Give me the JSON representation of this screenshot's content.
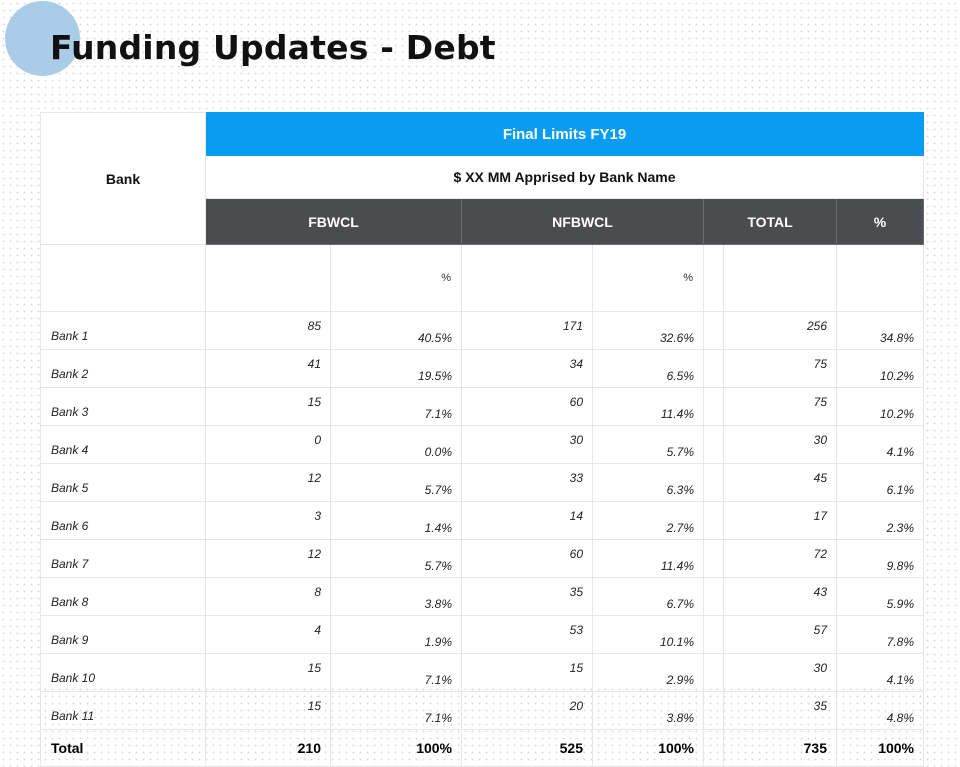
{
  "title": "Funding Updates - Debt",
  "table": {
    "bank_header": "Bank",
    "group_header": "Final Limits FY19",
    "sub_header": "$ XX MM Apprised by Bank Name",
    "columns": {
      "fbwcl": "FBWCL",
      "nfbwcl": "NFBWCL",
      "total": "TOTAL",
      "pct": "%"
    },
    "pct_label": "%",
    "rows": [
      {
        "bank": "Bank 1",
        "fbwcl": "85",
        "fbwcl_pct": "40.5%",
        "nfbwcl": "171",
        "nfbwcl_pct": "32.6%",
        "total": "256",
        "total_pct": "34.8%"
      },
      {
        "bank": "Bank 2",
        "fbwcl": "41",
        "fbwcl_pct": "19.5%",
        "nfbwcl": "34",
        "nfbwcl_pct": "6.5%",
        "total": "75",
        "total_pct": "10.2%"
      },
      {
        "bank": "Bank 3",
        "fbwcl": "15",
        "fbwcl_pct": "7.1%",
        "nfbwcl": "60",
        "nfbwcl_pct": "11.4%",
        "total": "75",
        "total_pct": "10.2%"
      },
      {
        "bank": "Bank 4",
        "fbwcl": "0",
        "fbwcl_pct": "0.0%",
        "nfbwcl": "30",
        "nfbwcl_pct": "5.7%",
        "total": "30",
        "total_pct": "4.1%"
      },
      {
        "bank": "Bank 5",
        "fbwcl": "12",
        "fbwcl_pct": "5.7%",
        "nfbwcl": "33",
        "nfbwcl_pct": "6.3%",
        "total": "45",
        "total_pct": "6.1%"
      },
      {
        "bank": "Bank 6",
        "fbwcl": "3",
        "fbwcl_pct": "1.4%",
        "nfbwcl": "14",
        "nfbwcl_pct": "2.7%",
        "total": "17",
        "total_pct": "2.3%"
      },
      {
        "bank": "Bank 7",
        "fbwcl": "12",
        "fbwcl_pct": "5.7%",
        "nfbwcl": "60",
        "nfbwcl_pct": "11.4%",
        "total": "72",
        "total_pct": "9.8%"
      },
      {
        "bank": "Bank 8",
        "fbwcl": "8",
        "fbwcl_pct": "3.8%",
        "nfbwcl": "35",
        "nfbwcl_pct": "6.7%",
        "total": "43",
        "total_pct": "5.9%"
      },
      {
        "bank": "Bank 9",
        "fbwcl": "4",
        "fbwcl_pct": "1.9%",
        "nfbwcl": "53",
        "nfbwcl_pct": "10.1%",
        "total": "57",
        "total_pct": "7.8%"
      },
      {
        "bank": "Bank 10",
        "fbwcl": "15",
        "fbwcl_pct": "7.1%",
        "nfbwcl": "15",
        "nfbwcl_pct": "2.9%",
        "total": "30",
        "total_pct": "4.1%"
      },
      {
        "bank": "Bank 11",
        "fbwcl": "15",
        "fbwcl_pct": "7.1%",
        "nfbwcl": "20",
        "nfbwcl_pct": "3.8%",
        "total": "35",
        "total_pct": "4.8%"
      }
    ],
    "total_row": {
      "bank": "Total",
      "fbwcl": "210",
      "fbwcl_pct": "100%",
      "nfbwcl": "525",
      "nfbwcl_pct": "100%",
      "total": "735",
      "total_pct": "100%"
    }
  },
  "colors": {
    "accent": "#0a9cf0",
    "header_dark": "#4a4c50",
    "circle": "#a9cde6"
  }
}
